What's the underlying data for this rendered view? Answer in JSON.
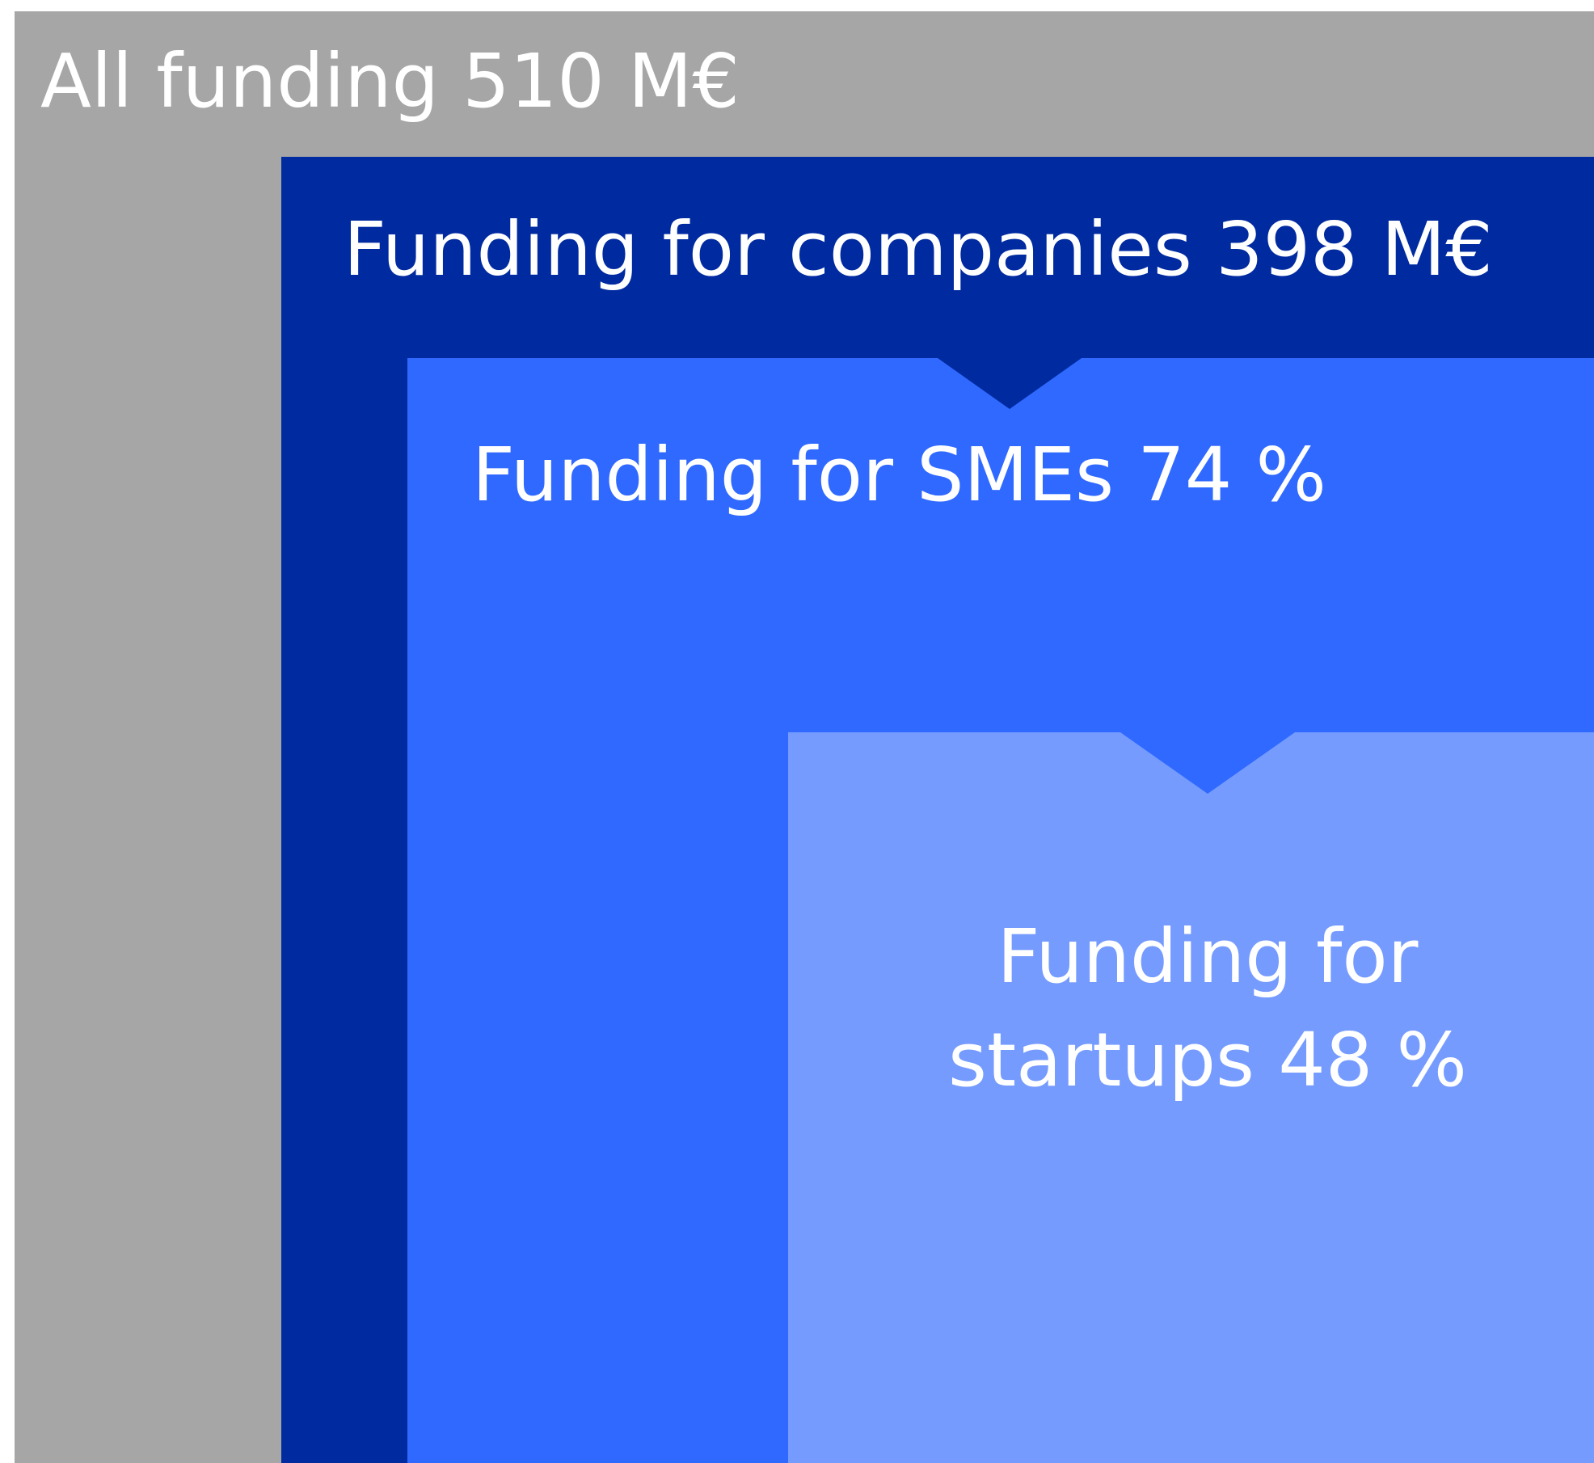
{
  "nodes": [
    {
      "label": "All funding 510 M€"
    },
    {
      "label": "Funding for companies 398 M€"
    },
    {
      "label": "Funding for SMEs 74 %"
    },
    {
      "label": [
        "Funding for",
        "startups 48 %"
      ]
    }
  ]
}
